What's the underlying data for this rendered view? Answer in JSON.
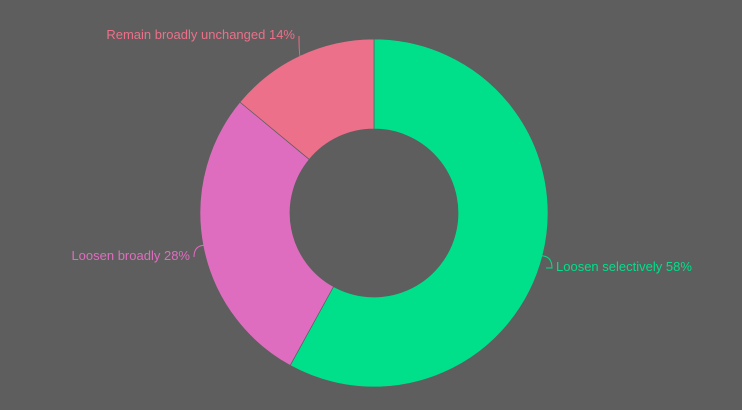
{
  "chart_data": {
    "type": "donut",
    "categories": [
      "Loosen selectively",
      "Loosen broadly",
      "Remain broadly unchanged"
    ],
    "values": [
      58,
      28,
      14
    ],
    "value_labels": [
      "58%",
      "28%",
      "14%"
    ],
    "colors": [
      "#00e08a",
      "#df6dbf",
      "#ec7089"
    ]
  }
}
